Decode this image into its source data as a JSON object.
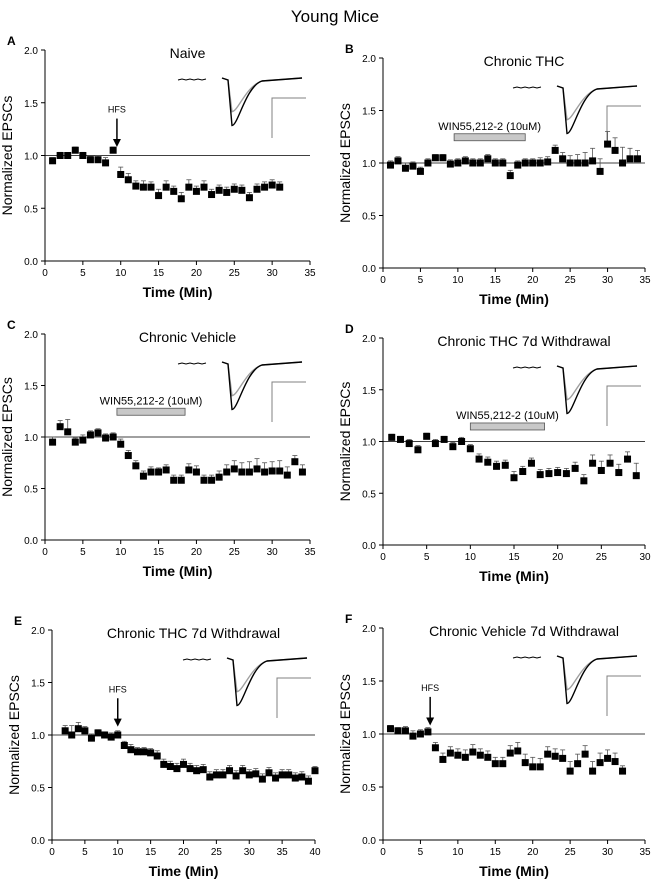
{
  "figure": {
    "title": "Young Mice"
  },
  "chart_data": [
    {
      "type": "scatter",
      "panel": "A",
      "title": "Naive",
      "xlabel": "Time (Min)",
      "ylabel": "Normalized EPSCs",
      "xlim": [
        0,
        35
      ],
      "ylim": [
        0,
        2.0
      ],
      "xticks": [
        "0",
        "5",
        "10",
        "15",
        "20",
        "25",
        "30",
        "35"
      ],
      "yticks": [
        "0.0",
        "0.5",
        "1.0",
        "1.5",
        "2.0"
      ],
      "baseline": 1.0,
      "annotation": {
        "type": "arrow",
        "label": "HFS",
        "x": 9.5
      },
      "bar": null,
      "traces": {
        "gray": "#a0a0a0",
        "black": "#000000"
      },
      "series": [
        {
          "x": [
            1,
            2,
            3,
            4,
            5,
            6,
            7,
            8,
            9,
            10,
            11,
            12,
            13,
            14,
            15,
            16,
            17,
            18,
            19,
            20,
            21,
            22,
            23,
            24,
            25,
            26,
            27,
            28,
            29,
            30,
            31
          ],
          "y": [
            0.95,
            1.0,
            1.0,
            1.05,
            1.0,
            0.96,
            0.96,
            0.93,
            1.05,
            0.82,
            0.77,
            0.71,
            0.7,
            0.7,
            0.62,
            0.7,
            0.66,
            0.59,
            0.7,
            0.66,
            0.7,
            0.63,
            0.67,
            0.65,
            0.68,
            0.67,
            0.6,
            0.68,
            0.7,
            0.72,
            0.7
          ],
          "err": [
            0.03,
            0.03,
            0.02,
            0.03,
            0.03,
            0.03,
            0.04,
            0.05,
            0.03,
            0.07,
            0.06,
            0.05,
            0.06,
            0.05,
            0.06,
            0.06,
            0.05,
            0.06,
            0.07,
            0.05,
            0.06,
            0.05,
            0.05,
            0.05,
            0.05,
            0.05,
            0.05,
            0.05,
            0.05,
            0.05,
            0.05
          ]
        }
      ]
    },
    {
      "type": "scatter",
      "panel": "B",
      "title": "Chronic THC",
      "xlabel": "Time (Min)",
      "ylabel": "Normalized EPSCs",
      "xlim": [
        0,
        35
      ],
      "ylim": [
        0,
        2.0
      ],
      "xticks": [
        "0",
        "5",
        "10",
        "15",
        "20",
        "25",
        "30",
        "35"
      ],
      "yticks": [
        "0.0",
        "0.5",
        "1.0",
        "1.5",
        "2.0"
      ],
      "baseline": 1.0,
      "annotation": null,
      "bar": {
        "label": "WIN55,212-2 (10uM)",
        "x0": 9.5,
        "x1": 19,
        "y": 1.25
      },
      "traces": {
        "gray": "#a0a0a0",
        "black": "#000000"
      },
      "series": [
        {
          "x": [
            1,
            2,
            3,
            4,
            5,
            6,
            7,
            8,
            9,
            10,
            11,
            12,
            13,
            14,
            15,
            16,
            17,
            18,
            19,
            20,
            21,
            22,
            23,
            24,
            25,
            26,
            27,
            28,
            29,
            30,
            31,
            32,
            33,
            34
          ],
          "y": [
            0.98,
            1.02,
            0.95,
            0.97,
            0.92,
            1.0,
            1.05,
            1.05,
            0.99,
            1.0,
            1.02,
            1.0,
            1.0,
            1.04,
            1.0,
            1.0,
            0.88,
            0.98,
            1.0,
            1.0,
            1.0,
            1.01,
            1.12,
            1.04,
            1.0,
            1.0,
            1.0,
            1.02,
            0.92,
            1.18,
            1.12,
            1.0,
            1.04,
            1.04
          ],
          "err": [
            0.04,
            0.04,
            0.05,
            0.04,
            0.04,
            0.04,
            0.03,
            0.03,
            0.04,
            0.04,
            0.04,
            0.04,
            0.04,
            0.04,
            0.04,
            0.04,
            0.05,
            0.04,
            0.04,
            0.04,
            0.05,
            0.05,
            0.05,
            0.06,
            0.07,
            0.08,
            0.1,
            0.12,
            0.12,
            0.12,
            0.12,
            0.15,
            0.1,
            0.08
          ]
        }
      ]
    },
    {
      "type": "scatter",
      "panel": "C",
      "title": "Chronic Vehicle",
      "xlabel": "Time (Min)",
      "ylabel": "Normalized EPSCs",
      "xlim": [
        0,
        35
      ],
      "ylim": [
        0,
        2.0
      ],
      "xticks": [
        "0",
        "5",
        "10",
        "15",
        "20",
        "25",
        "30",
        "35"
      ],
      "yticks": [
        "0.0",
        "0.5",
        "1.0",
        "1.5",
        "2.0"
      ],
      "baseline": 1.0,
      "annotation": null,
      "bar": {
        "label": "WIN55,212-2 (10uM)",
        "x0": 9.5,
        "x1": 18.5,
        "y": 1.25
      },
      "traces": {
        "gray": "#a0a0a0",
        "black": "#000000"
      },
      "series": [
        {
          "x": [
            1,
            2,
            3,
            4,
            5,
            6,
            7,
            8,
            9,
            10,
            11,
            12,
            13,
            14,
            15,
            16,
            17,
            18,
            19,
            20,
            21,
            22,
            23,
            24,
            25,
            26,
            27,
            28,
            29,
            30,
            31,
            32,
            33,
            34
          ],
          "y": [
            0.95,
            1.1,
            1.05,
            0.95,
            0.97,
            1.02,
            1.04,
            0.99,
            1.0,
            0.93,
            0.82,
            0.72,
            0.62,
            0.66,
            0.66,
            0.68,
            0.58,
            0.58,
            0.68,
            0.66,
            0.58,
            0.58,
            0.61,
            0.66,
            0.69,
            0.66,
            0.66,
            0.69,
            0.66,
            0.67,
            0.67,
            0.63,
            0.76,
            0.66
          ],
          "err": [
            0.05,
            0.06,
            0.12,
            0.04,
            0.05,
            0.04,
            0.04,
            0.04,
            0.04,
            0.05,
            0.05,
            0.05,
            0.05,
            0.05,
            0.04,
            0.05,
            0.05,
            0.05,
            0.06,
            0.06,
            0.05,
            0.05,
            0.06,
            0.07,
            0.08,
            0.09,
            0.1,
            0.1,
            0.09,
            0.09,
            0.1,
            0.08,
            0.06,
            0.07
          ]
        }
      ]
    },
    {
      "type": "scatter",
      "panel": "D",
      "title": "Chronic THC 7d Withdrawal",
      "xlabel": "Time (Min)",
      "ylabel": "Normalized EPSCs",
      "xlim": [
        0,
        30
      ],
      "ylim": [
        0,
        2.0
      ],
      "xticks": [
        "0",
        "5",
        "10",
        "15",
        "20",
        "25",
        "30"
      ],
      "yticks": [
        "0.0",
        "0.5",
        "1.0",
        "1.5",
        "2.0"
      ],
      "baseline": 1.0,
      "annotation": null,
      "bar": {
        "label": "WIN55,212-2 (10uM)",
        "x0": 10,
        "x1": 18.5,
        "y": 1.15
      },
      "traces": {
        "gray": "#a0a0a0",
        "black": "#000000"
      },
      "series": [
        {
          "x": [
            1,
            2,
            3,
            4,
            5,
            6,
            7,
            8,
            9,
            10,
            11,
            12,
            13,
            14,
            15,
            16,
            17,
            18,
            19,
            20,
            21,
            22,
            23,
            24,
            25,
            26,
            27,
            28,
            29
          ],
          "y": [
            1.04,
            1.02,
            0.98,
            0.92,
            1.05,
            0.98,
            1.02,
            0.95,
            1.0,
            0.93,
            0.83,
            0.8,
            0.76,
            0.77,
            0.65,
            0.71,
            0.79,
            0.68,
            0.69,
            0.7,
            0.69,
            0.74,
            0.62,
            0.79,
            0.72,
            0.79,
            0.7,
            0.83,
            0.67
          ],
          "err": [
            0.03,
            0.03,
            0.04,
            0.04,
            0.03,
            0.04,
            0.03,
            0.04,
            0.04,
            0.04,
            0.05,
            0.05,
            0.05,
            0.05,
            0.06,
            0.05,
            0.05,
            0.05,
            0.05,
            0.05,
            0.05,
            0.06,
            0.06,
            0.08,
            0.09,
            0.08,
            0.08,
            0.07,
            0.12
          ]
        }
      ]
    },
    {
      "type": "scatter",
      "panel": "E",
      "title": "Chronic THC 7d Withdrawal",
      "xlabel": "Time (Min)",
      "ylabel": "Normalized EPSCs",
      "xlim": [
        0,
        40
      ],
      "ylim": [
        0,
        2.0
      ],
      "xticks": [
        "0",
        "5",
        "10",
        "15",
        "20",
        "25",
        "30",
        "35",
        "40"
      ],
      "yticks": [
        "0.0",
        "0.5",
        "1.0",
        "1.5",
        "2.0"
      ],
      "baseline": 1.0,
      "annotation": {
        "type": "arrow",
        "label": "HFS",
        "x": 10
      },
      "bar": null,
      "traces": {
        "gray": "#a0a0a0",
        "black": "#000000"
      },
      "series": [
        {
          "x": [
            2,
            3,
            4,
            5,
            6,
            7,
            8,
            9,
            10,
            11,
            12,
            13,
            14,
            15,
            16,
            17,
            18,
            19,
            20,
            21,
            22,
            23,
            24,
            25,
            26,
            27,
            28,
            29,
            30,
            31,
            32,
            33,
            34,
            35,
            36,
            37,
            38,
            39,
            40
          ],
          "y": [
            1.04,
            1.0,
            1.06,
            1.04,
            0.97,
            1.02,
            1.0,
            0.98,
            1.0,
            0.9,
            0.86,
            0.84,
            0.84,
            0.83,
            0.8,
            0.72,
            0.7,
            0.68,
            0.72,
            0.68,
            0.66,
            0.67,
            0.6,
            0.62,
            0.62,
            0.66,
            0.61,
            0.66,
            0.62,
            0.63,
            0.58,
            0.64,
            0.59,
            0.62,
            0.62,
            0.59,
            0.6,
            0.56,
            0.66
          ],
          "err": [
            0.05,
            0.09,
            0.06,
            0.04,
            0.04,
            0.03,
            0.03,
            0.04,
            0.04,
            0.04,
            0.05,
            0.04,
            0.04,
            0.04,
            0.05,
            0.05,
            0.05,
            0.05,
            0.05,
            0.05,
            0.05,
            0.05,
            0.05,
            0.05,
            0.05,
            0.05,
            0.05,
            0.05,
            0.05,
            0.05,
            0.05,
            0.05,
            0.05,
            0.05,
            0.05,
            0.05,
            0.05,
            0.05,
            0.04
          ]
        }
      ]
    },
    {
      "type": "scatter",
      "panel": "F",
      "title": "Chronic Vehicle 7d Withdrawal",
      "xlabel": "Time (Min)",
      "ylabel": "Normalized EPSCs",
      "xlim": [
        0,
        35
      ],
      "ylim": [
        0,
        2.0
      ],
      "xticks": [
        "0",
        "5",
        "10",
        "15",
        "20",
        "25",
        "30",
        "35"
      ],
      "yticks": [
        "0.0",
        "0.5",
        "1.0",
        "1.5",
        "2.0"
      ],
      "baseline": 1.0,
      "annotation": {
        "type": "arrow",
        "label": "HFS",
        "x": 6.3
      },
      "bar": null,
      "traces": {
        "gray": "#a0a0a0",
        "black": "#000000"
      },
      "series": [
        {
          "x": [
            1,
            2,
            3,
            4,
            5,
            6,
            7,
            8,
            9,
            10,
            11,
            12,
            13,
            14,
            15,
            16,
            17,
            18,
            19,
            20,
            21,
            22,
            23,
            24,
            25,
            26,
            27,
            28,
            29,
            30,
            31,
            32
          ],
          "y": [
            1.05,
            1.03,
            1.03,
            0.98,
            1.0,
            1.02,
            0.87,
            0.76,
            0.82,
            0.8,
            0.78,
            0.83,
            0.8,
            0.78,
            0.72,
            0.72,
            0.82,
            0.84,
            0.73,
            0.69,
            0.69,
            0.81,
            0.79,
            0.77,
            0.65,
            0.72,
            0.81,
            0.65,
            0.73,
            0.77,
            0.74,
            0.65
          ],
          "err": [
            0.03,
            0.03,
            0.04,
            0.05,
            0.04,
            0.04,
            0.05,
            0.06,
            0.06,
            0.06,
            0.07,
            0.07,
            0.06,
            0.06,
            0.06,
            0.06,
            0.07,
            0.08,
            0.08,
            0.09,
            0.08,
            0.07,
            0.07,
            0.08,
            0.09,
            0.09,
            0.08,
            0.09,
            0.09,
            0.08,
            0.08,
            0.05
          ]
        }
      ]
    }
  ]
}
